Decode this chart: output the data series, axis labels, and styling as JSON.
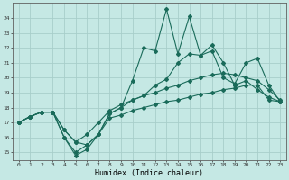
{
  "xlabel": "Humidex (Indice chaleur)",
  "background_color": "#c5e8e4",
  "grid_color": "#a8ceca",
  "line_color": "#1a6b5a",
  "x": [
    0,
    1,
    2,
    3,
    4,
    5,
    6,
    7,
    8,
    9,
    10,
    11,
    12,
    13,
    14,
    15,
    16,
    17,
    18,
    19,
    20,
    21,
    22,
    23
  ],
  "line_noisy": [
    17.0,
    17.4,
    17.7,
    17.7,
    16.0,
    14.8,
    15.2,
    16.2,
    17.6,
    18.0,
    19.8,
    22.0,
    21.8,
    24.6,
    21.6,
    24.1,
    21.5,
    22.2,
    21.0,
    19.5,
    19.8,
    19.2,
    18.7,
    18.4
  ],
  "line_upper_fan": [
    17.0,
    17.4,
    17.7,
    17.7,
    16.5,
    15.7,
    15.5,
    16.2,
    17.6,
    18.0,
    18.5,
    18.8,
    19.5,
    19.9,
    21.0,
    21.6,
    21.5,
    21.8,
    20.0,
    19.6,
    21.0,
    21.3,
    19.5,
    18.4
  ],
  "line_mid": [
    17.0,
    17.4,
    17.7,
    17.7,
    16.5,
    15.7,
    16.2,
    17.0,
    17.8,
    18.2,
    18.5,
    18.8,
    19.0,
    19.3,
    19.5,
    19.8,
    20.0,
    20.2,
    20.3,
    20.2,
    20.0,
    19.8,
    19.2,
    18.5
  ],
  "line_lower": [
    17.0,
    17.4,
    17.7,
    17.7,
    16.0,
    15.0,
    15.5,
    16.2,
    17.3,
    17.5,
    17.8,
    18.0,
    18.2,
    18.4,
    18.5,
    18.7,
    18.9,
    19.0,
    19.2,
    19.3,
    19.5,
    19.5,
    18.5,
    18.4
  ],
  "ylim": [
    14.5,
    25.0
  ],
  "yticks": [
    15,
    16,
    17,
    18,
    19,
    20,
    21,
    22,
    23,
    24
  ],
  "xlim": [
    -0.5,
    23.5
  ],
  "xticks": [
    0,
    1,
    2,
    3,
    4,
    5,
    6,
    7,
    8,
    9,
    10,
    11,
    12,
    13,
    14,
    15,
    16,
    17,
    18,
    19,
    20,
    21,
    22,
    23
  ]
}
